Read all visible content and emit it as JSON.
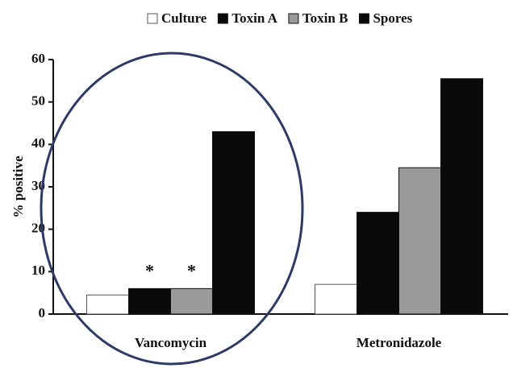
{
  "chart_data": {
    "type": "bar",
    "y_label": "% positive",
    "categories": [
      "Vancomycin",
      "Metronidazole"
    ],
    "series": [
      {
        "name": "Culture",
        "color": "#ffffff",
        "values": [
          4.5,
          7
        ]
      },
      {
        "name": "Toxin A",
        "color": "#0a0a0a",
        "values": [
          6,
          24
        ]
      },
      {
        "name": "Toxin B",
        "color": "#9a9a9a",
        "values": [
          6,
          34.5
        ]
      },
      {
        "name": "Spores",
        "color": "#0a0a0a",
        "values": [
          43,
          55.5
        ]
      }
    ],
    "annotations": [
      {
        "text": "*",
        "series": "Toxin A",
        "category": "Vancomycin"
      },
      {
        "text": "*",
        "series": "Toxin B",
        "category": "Vancomycin"
      }
    ],
    "ylim": [
      0,
      60
    ],
    "yticks": [
      0,
      10,
      20,
      30,
      40,
      50,
      60
    ],
    "grid": false,
    "legend": "top"
  }
}
